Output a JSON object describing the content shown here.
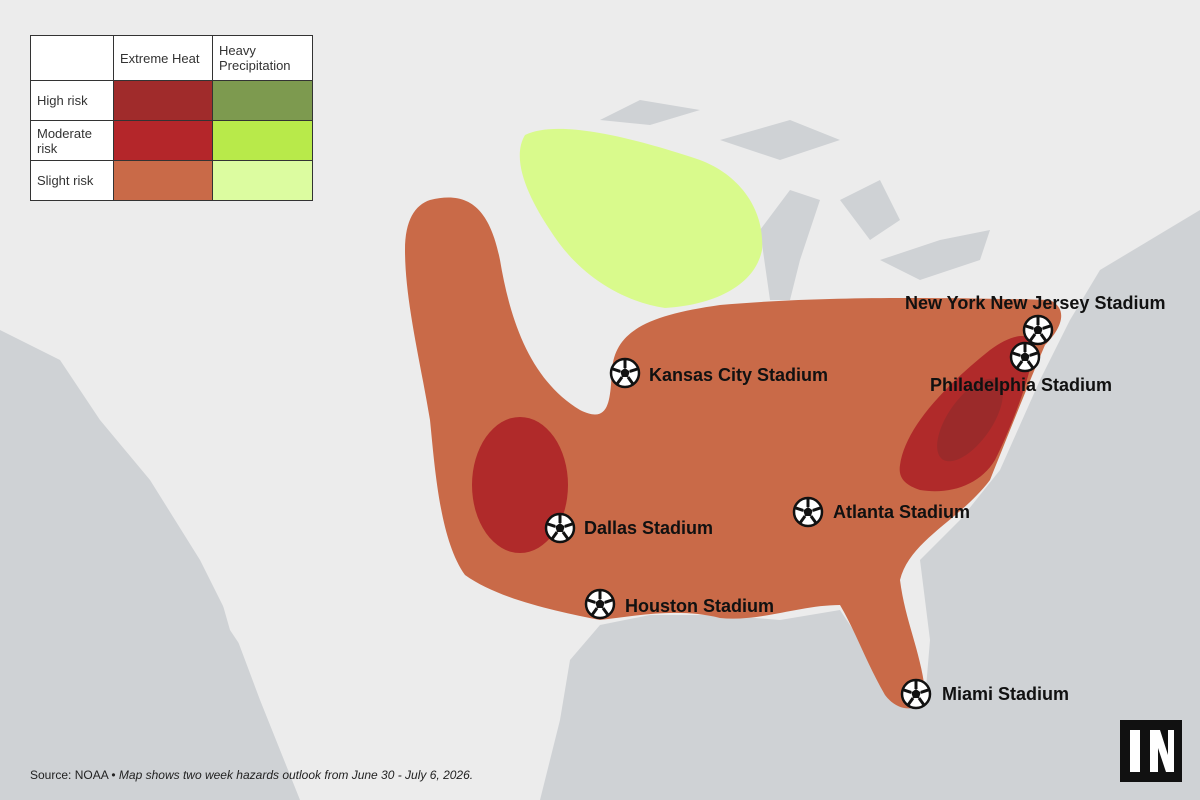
{
  "legend": {
    "columns": [
      "Extreme Heat",
      "Heavy Precipitation"
    ],
    "rows": [
      "High risk",
      "Moderate risk",
      "Slight risk"
    ]
  },
  "stadiums": [
    "New York New Jersey Stadium",
    "Philadelphia Stadium",
    "Kansas City Stadium",
    "Dallas Stadium",
    "Atlanta Stadium",
    "Houston Stadium",
    "Miami Stadium"
  ],
  "source": {
    "prefix": "Source: NOAA •",
    "note": "Map shows two week hazards outlook from June 30 - July 6, 2026."
  }
}
